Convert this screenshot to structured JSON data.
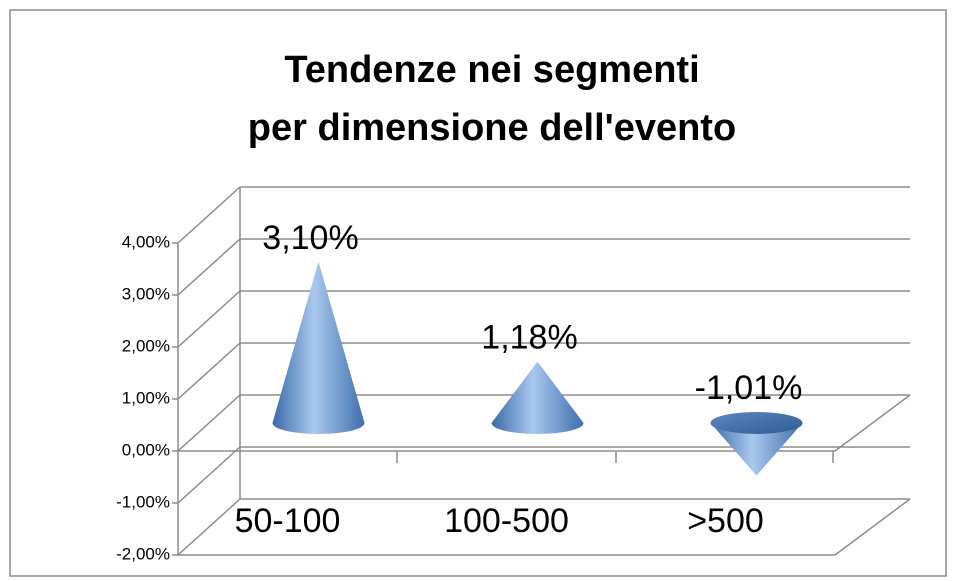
{
  "chart_data": {
    "type": "cone",
    "title": [
      "Tendenze nei segmenti",
      "per dimensione dell'evento"
    ],
    "categories": [
      "50-100",
      "100-500",
      ">500"
    ],
    "values": [
      3.1,
      1.18,
      -1.01
    ],
    "value_labels": [
      "3,10%",
      "1,18%",
      "-1,01%"
    ],
    "color": "#4f81bd",
    "ylim": [
      -2,
      4
    ],
    "yticks": [
      {
        "value": -2,
        "label": "-2,00%"
      },
      {
        "value": -1,
        "label": "-1,00%"
      },
      {
        "value": 0,
        "label": "0,00%"
      },
      {
        "value": 1,
        "label": "1,00%"
      },
      {
        "value": 2,
        "label": "2,00%"
      },
      {
        "value": 3,
        "label": "3,00%"
      },
      {
        "value": 4,
        "label": "4,00%"
      }
    ],
    "grid": true
  }
}
